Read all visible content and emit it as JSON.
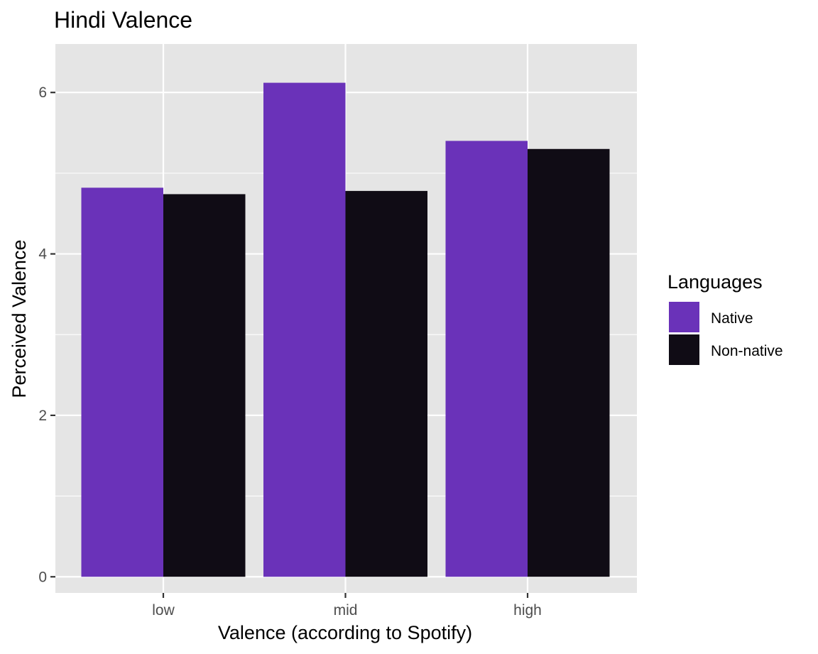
{
  "chart_data": {
    "type": "bar",
    "title": "Hindi Valence",
    "xlabel": "Valence (according to Spotify)",
    "ylabel": "Perceived Valence",
    "categories": [
      "low",
      "mid",
      "high"
    ],
    "series": [
      {
        "name": "Native",
        "values": [
          4.82,
          6.12,
          5.4
        ],
        "color": "#6a32b9"
      },
      {
        "name": "Non-native",
        "values": [
          4.74,
          4.78,
          5.3
        ],
        "color": "#100c15"
      }
    ],
    "ylim": [
      -0.2,
      6.6
    ],
    "yticks": [
      0,
      2,
      4,
      6
    ],
    "y_minor_ticks": [
      1,
      3,
      5
    ],
    "grid": true,
    "panel_background": "#e5e5e5",
    "grid_color": "#ffffff",
    "legend": {
      "title": "Languages",
      "position": "right"
    }
  }
}
